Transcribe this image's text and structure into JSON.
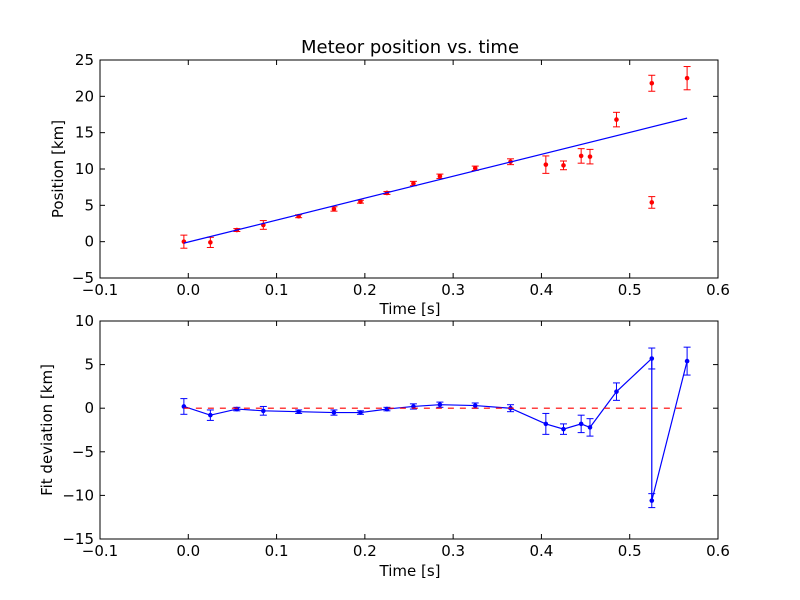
{
  "chart_data": [
    {
      "type": "scatter",
      "title": "Meteor position vs. time",
      "xlabel": "Time [s]",
      "ylabel": "Position [km]",
      "xlim": [
        -0.1,
        0.6
      ],
      "ylim": [
        -5,
        25
      ],
      "xticks": [
        "−0.1",
        "0.0",
        "0.1",
        "0.2",
        "0.3",
        "0.4",
        "0.5",
        "0.6"
      ],
      "yticks": [
        "−5",
        "0",
        "5",
        "10",
        "15",
        "20",
        "25"
      ],
      "grid": false,
      "series": [
        {
          "kind": "errorbar-points",
          "color": "#ff0000",
          "x": [
            -0.005,
            0.025,
            0.055,
            0.085,
            0.125,
            0.165,
            0.195,
            0.225,
            0.255,
            0.285,
            0.325,
            0.365,
            0.405,
            0.425,
            0.445,
            0.455,
            0.485,
            0.525,
            0.525,
            0.565
          ],
          "y": [
            0.0,
            -0.1,
            1.6,
            2.3,
            3.5,
            4.5,
            5.5,
            6.7,
            8.0,
            9.0,
            10.1,
            11.0,
            10.6,
            10.5,
            11.8,
            11.7,
            16.8,
            21.8,
            5.4,
            22.5
          ],
          "yerr": [
            0.9,
            0.7,
            0.2,
            0.6,
            0.2,
            0.3,
            0.2,
            0.2,
            0.3,
            0.3,
            0.3,
            0.4,
            1.2,
            0.6,
            1.0,
            1.0,
            1.0,
            1.1,
            0.8,
            1.6
          ]
        },
        {
          "kind": "fit-line",
          "color": "#0000ff",
          "x": [
            -0.005,
            0.565
          ],
          "y": [
            -0.2,
            17.0
          ]
        }
      ]
    },
    {
      "type": "line",
      "title": "",
      "xlabel": "Time [s]",
      "ylabel": "Fit deviation [km]",
      "xlim": [
        -0.1,
        0.6
      ],
      "ylim": [
        -15,
        10
      ],
      "xticks": [
        "−0.1",
        "0.0",
        "0.1",
        "0.2",
        "0.3",
        "0.4",
        "0.5",
        "0.6"
      ],
      "yticks": [
        "−15",
        "−10",
        "−5",
        "0",
        "5",
        "10"
      ],
      "grid": false,
      "series": [
        {
          "kind": "errorbar-line",
          "color": "#0000ff",
          "x": [
            -0.005,
            0.025,
            0.055,
            0.085,
            0.125,
            0.165,
            0.195,
            0.225,
            0.255,
            0.285,
            0.325,
            0.365,
            0.405,
            0.425,
            0.445,
            0.455,
            0.485,
            0.525,
            0.525,
            0.565
          ],
          "y": [
            0.2,
            -0.8,
            -0.1,
            -0.3,
            -0.4,
            -0.5,
            -0.5,
            -0.1,
            0.2,
            0.4,
            0.3,
            0.0,
            -1.8,
            -2.4,
            -1.8,
            -2.2,
            1.9,
            5.7,
            -10.6,
            5.4
          ],
          "yerr": [
            0.9,
            0.6,
            0.2,
            0.5,
            0.2,
            0.3,
            0.2,
            0.2,
            0.3,
            0.3,
            0.3,
            0.4,
            1.2,
            0.6,
            1.0,
            1.0,
            1.0,
            1.2,
            0.8,
            1.6
          ]
        },
        {
          "kind": "reference-line",
          "color": "#ff0000",
          "style": "dashed",
          "x": [
            -0.005,
            0.565
          ],
          "y": [
            0,
            0
          ]
        }
      ]
    }
  ]
}
